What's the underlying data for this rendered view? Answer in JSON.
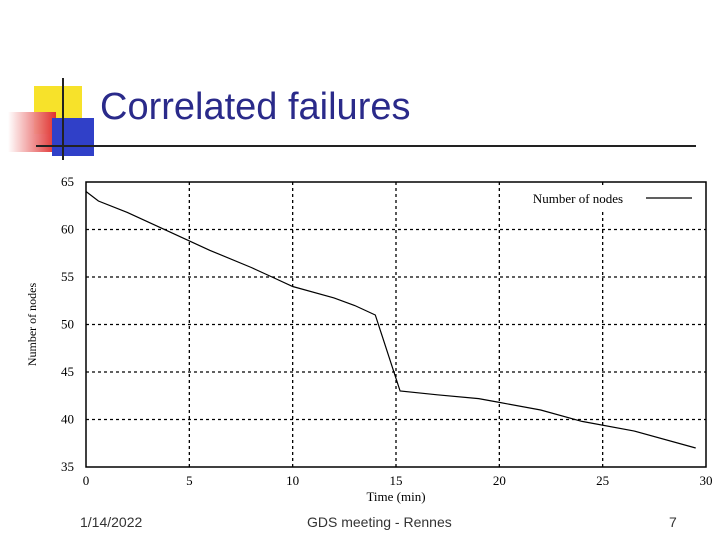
{
  "slide": {
    "title": "Correlated failures",
    "footer_date": "1/14/2022",
    "footer_center": "GDS meeting - Rennes",
    "footer_page": "7"
  },
  "colors": {
    "title": "#2a2a8a",
    "accent_yellow": "#f7e22a",
    "accent_blue": "#3040c8",
    "accent_red": "#e03030"
  },
  "chart_data": {
    "type": "line",
    "xlabel": "Time (min)",
    "ylabel": "Number of nodes",
    "xlim": [
      0,
      30
    ],
    "ylim": [
      35,
      65
    ],
    "xticks": [
      0,
      5,
      10,
      15,
      20,
      25,
      30
    ],
    "yticks": [
      35,
      40,
      45,
      50,
      55,
      60,
      65
    ],
    "grid": true,
    "legend_position": "top-right",
    "series": [
      {
        "name": "Number of nodes",
        "x": [
          0,
          0.6,
          2,
          4,
          6,
          8,
          9,
          10,
          12,
          13,
          14,
          15.2,
          17,
          19,
          20,
          22,
          24,
          26.5,
          29.5
        ],
        "y": [
          64,
          63,
          61.8,
          59.8,
          57.8,
          56.0,
          55.0,
          54.0,
          52.8,
          52.0,
          51.0,
          43.0,
          42.6,
          42.2,
          41.8,
          41.0,
          39.8,
          38.8,
          37.0
        ]
      }
    ]
  }
}
